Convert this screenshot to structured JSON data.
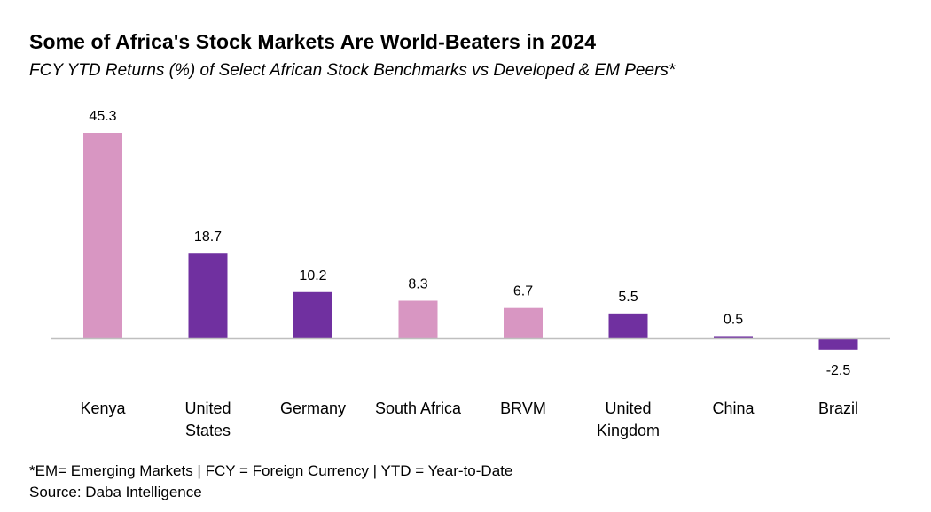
{
  "title": "Some of Africa's Stock Markets Are World-Beaters in 2024",
  "subtitle": "FCY YTD Returns (%) of Select African Stock Benchmarks vs Developed & EM Peers*",
  "chart_data": {
    "type": "bar",
    "categories": [
      [
        "Kenya"
      ],
      [
        "United",
        "States"
      ],
      [
        "Germany"
      ],
      [
        "South Africa"
      ],
      [
        "BRVM"
      ],
      [
        "United",
        "Kingdom"
      ],
      [
        "China"
      ],
      [
        "Brazil"
      ]
    ],
    "values": [
      45.3,
      18.7,
      10.2,
      8.3,
      6.7,
      5.5,
      0.5,
      -2.5
    ],
    "data_labels": [
      "45.3",
      "18.7",
      "10.2",
      "8.3",
      "6.7",
      "5.5",
      "0.5",
      "-2.5"
    ],
    "bar_colors": [
      "#d896c2",
      "#7030a0",
      "#7030a0",
      "#d896c2",
      "#d896c2",
      "#7030a0",
      "#7030a0",
      "#7030a0"
    ],
    "xlabel": "",
    "ylabel": "",
    "grid": false,
    "legend": "none"
  },
  "footnotes": {
    "definition": "*EM= Emerging Markets | FCY = Foreign Currency | YTD = Year-to-Date",
    "source": "Source: Daba Intelligence"
  },
  "colors": {
    "african_benchmark": "#d896c2",
    "peer_market": "#7030a0",
    "axis_line": "#bfbfbf"
  }
}
